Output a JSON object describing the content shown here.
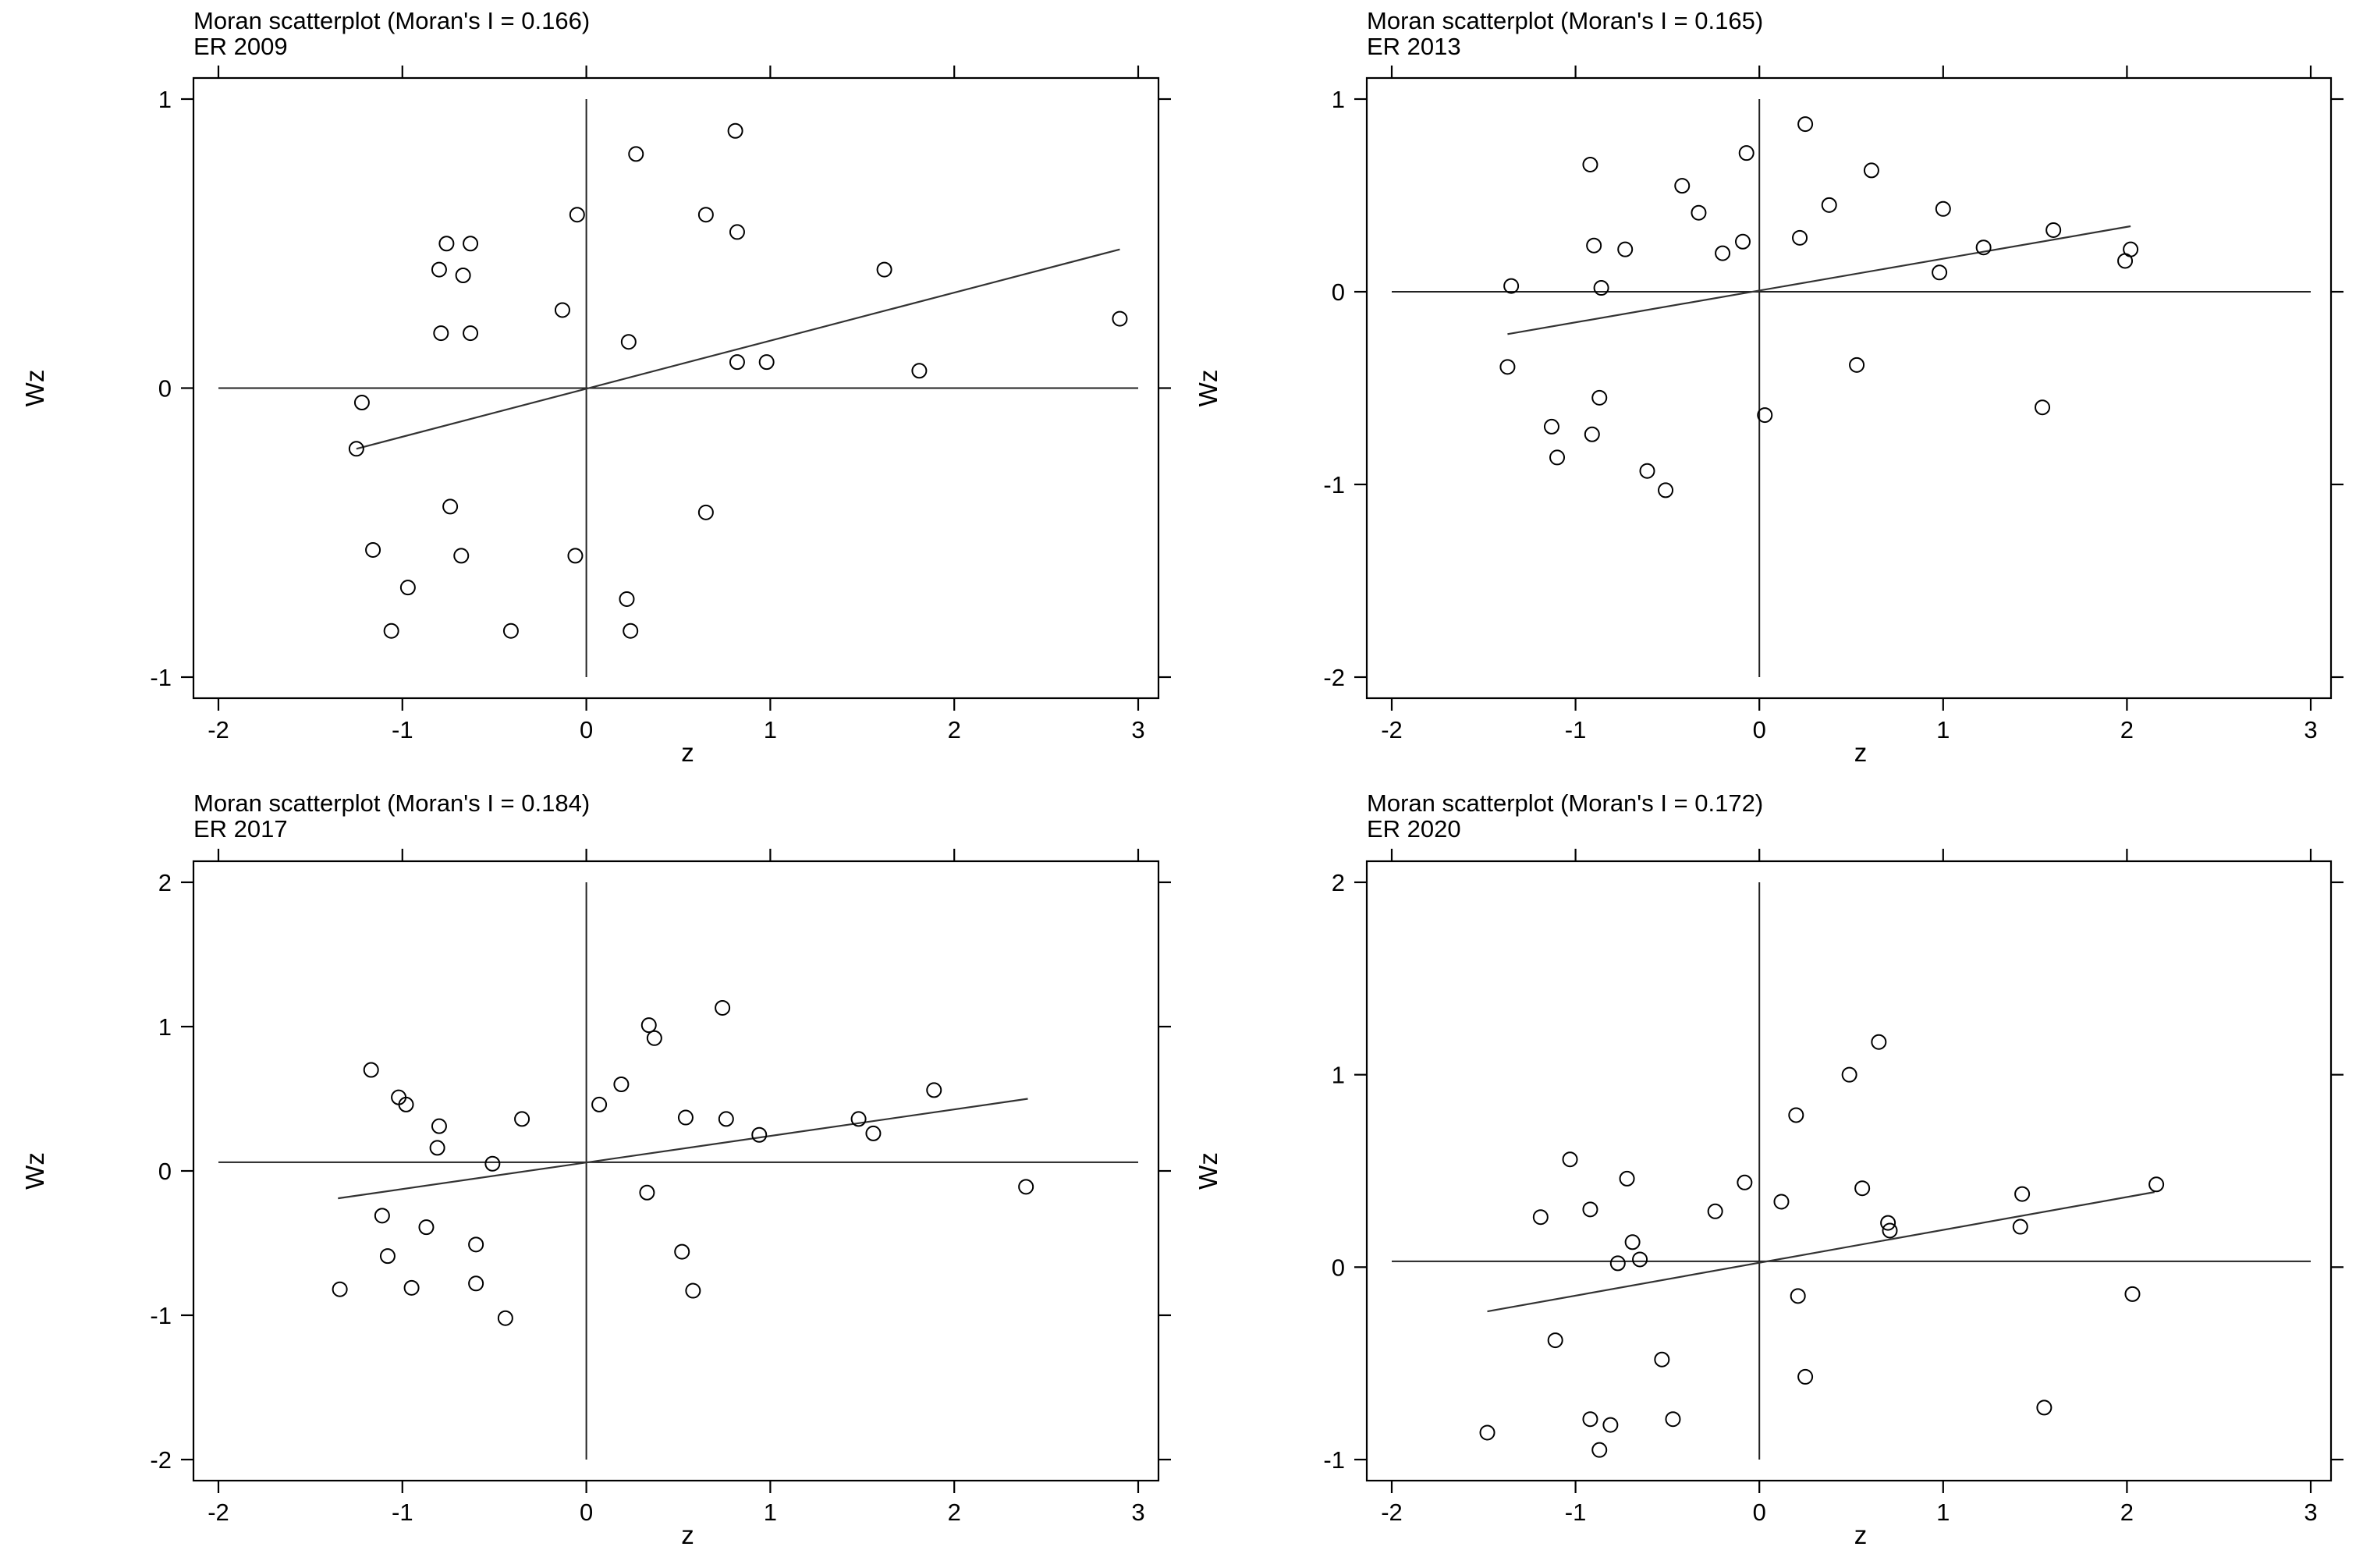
{
  "chart_data": [
    {
      "type": "scatter",
      "title": "Moran scatterplot (Moran's I = 0.166)",
      "subtitle": "ER 2009",
      "xlabel": "z",
      "ylabel": "Wz",
      "xlim": [
        -2,
        3
      ],
      "ylim": [
        -1,
        1
      ],
      "xticks": [
        "-2",
        "-1",
        "0",
        "1",
        "2",
        "3"
      ],
      "yticks": [
        "-1",
        "0",
        "1"
      ],
      "hline": 0.0,
      "vline": 0.0,
      "fit_line": {
        "x": [
          -1.25,
          2.9
        ],
        "y": [
          -0.21,
          0.48
        ]
      },
      "points": [
        {
          "x": 2.9,
          "y": 0.24
        },
        {
          "x": 1.81,
          "y": 0.06
        },
        {
          "x": 1.62,
          "y": 0.41
        },
        {
          "x": 0.81,
          "y": 0.89
        },
        {
          "x": 0.82,
          "y": 0.54
        },
        {
          "x": 0.65,
          "y": 0.6
        },
        {
          "x": 0.82,
          "y": 0.09
        },
        {
          "x": 0.98,
          "y": 0.09
        },
        {
          "x": 0.27,
          "y": 0.81
        },
        {
          "x": 0.23,
          "y": 0.16
        },
        {
          "x": -0.05,
          "y": 0.6
        },
        {
          "x": -0.13,
          "y": 0.27
        },
        {
          "x": -0.76,
          "y": 0.5
        },
        {
          "x": -0.63,
          "y": 0.5
        },
        {
          "x": -0.8,
          "y": 0.41
        },
        {
          "x": -0.67,
          "y": 0.39
        },
        {
          "x": -0.79,
          "y": 0.19
        },
        {
          "x": -0.63,
          "y": 0.19
        },
        {
          "x": -1.22,
          "y": -0.05
        },
        {
          "x": -1.25,
          "y": -0.21
        },
        {
          "x": -1.16,
          "y": -0.56
        },
        {
          "x": -0.74,
          "y": -0.41
        },
        {
          "x": -0.68,
          "y": -0.58
        },
        {
          "x": -0.97,
          "y": -0.69
        },
        {
          "x": -1.06,
          "y": -0.84
        },
        {
          "x": -0.41,
          "y": -0.84
        },
        {
          "x": -0.06,
          "y": -0.58
        },
        {
          "x": 0.22,
          "y": -0.73
        },
        {
          "x": 0.24,
          "y": -0.84
        },
        {
          "x": 0.65,
          "y": -0.43
        }
      ]
    },
    {
      "type": "scatter",
      "title": "Moran scatterplot (Moran's I = 0.165)",
      "subtitle": "ER 2013",
      "xlabel": "z",
      "ylabel": "Wz",
      "xlim": [
        -2,
        3
      ],
      "ylim": [
        -2,
        1
      ],
      "xticks": [
        "-2",
        "-1",
        "0",
        "1",
        "2",
        "3"
      ],
      "yticks": [
        "-2",
        "-1",
        "0",
        "1"
      ],
      "hline": 0.0,
      "vline": 0.0,
      "fit_line": {
        "x": [
          -1.37,
          2.02
        ],
        "y": [
          -0.22,
          0.34
        ]
      },
      "points": [
        {
          "x": 0.25,
          "y": 0.87
        },
        {
          "x": -0.07,
          "y": 0.72
        },
        {
          "x": -0.92,
          "y": 0.66
        },
        {
          "x": 0.61,
          "y": 0.63
        },
        {
          "x": -0.42,
          "y": 0.55
        },
        {
          "x": 0.38,
          "y": 0.45
        },
        {
          "x": 1.0,
          "y": 0.43
        },
        {
          "x": -0.33,
          "y": 0.41
        },
        {
          "x": 1.6,
          "y": 0.32
        },
        {
          "x": 0.22,
          "y": 0.28
        },
        {
          "x": -0.09,
          "y": 0.26
        },
        {
          "x": -0.9,
          "y": 0.24
        },
        {
          "x": 1.22,
          "y": 0.23
        },
        {
          "x": 2.02,
          "y": 0.22
        },
        {
          "x": -0.73,
          "y": 0.22
        },
        {
          "x": -0.2,
          "y": 0.2
        },
        {
          "x": 1.99,
          "y": 0.16
        },
        {
          "x": 0.98,
          "y": 0.1
        },
        {
          "x": -1.35,
          "y": 0.03
        },
        {
          "x": -0.86,
          "y": 0.02
        },
        {
          "x": -1.37,
          "y": -0.39
        },
        {
          "x": 0.53,
          "y": -0.38
        },
        {
          "x": -0.87,
          "y": -0.55
        },
        {
          "x": 1.54,
          "y": -0.6
        },
        {
          "x": 0.03,
          "y": -0.64
        },
        {
          "x": -1.13,
          "y": -0.7
        },
        {
          "x": -0.91,
          "y": -0.74
        },
        {
          "x": -1.1,
          "y": -0.86
        },
        {
          "x": -0.61,
          "y": -0.93
        },
        {
          "x": -0.51,
          "y": -1.03
        }
      ]
    },
    {
      "type": "scatter",
      "title": "Moran scatterplot (Moran's I = 0.184)",
      "subtitle": "ER 2017",
      "xlabel": "z",
      "ylabel": "Wz",
      "xlim": [
        -2,
        3
      ],
      "ylim": [
        -2,
        2
      ],
      "xticks": [
        "-2",
        "-1",
        "0",
        "1",
        "2",
        "3"
      ],
      "yticks": [
        "-2",
        "-1",
        "0",
        "1",
        "2"
      ],
      "hline": 0.06,
      "vline": 0.0,
      "fit_line": {
        "x": [
          -1.35,
          2.4
        ],
        "y": [
          -0.19,
          0.5
        ]
      },
      "points": [
        {
          "x": 0.74,
          "y": 1.13
        },
        {
          "x": 0.34,
          "y": 1.01
        },
        {
          "x": 0.37,
          "y": 0.92
        },
        {
          "x": -1.17,
          "y": 0.7
        },
        {
          "x": 0.19,
          "y": 0.6
        },
        {
          "x": 1.89,
          "y": 0.56
        },
        {
          "x": -1.02,
          "y": 0.51
        },
        {
          "x": -0.98,
          "y": 0.46
        },
        {
          "x": 0.07,
          "y": 0.46
        },
        {
          "x": -0.35,
          "y": 0.36
        },
        {
          "x": 0.54,
          "y": 0.37
        },
        {
          "x": 0.76,
          "y": 0.36
        },
        {
          "x": 1.48,
          "y": 0.36
        },
        {
          "x": -0.8,
          "y": 0.31
        },
        {
          "x": 0.94,
          "y": 0.25
        },
        {
          "x": 1.56,
          "y": 0.26
        },
        {
          "x": -0.81,
          "y": 0.16
        },
        {
          "x": -0.51,
          "y": 0.05
        },
        {
          "x": 2.39,
          "y": -0.11
        },
        {
          "x": 0.33,
          "y": -0.15
        },
        {
          "x": -1.11,
          "y": -0.31
        },
        {
          "x": -0.87,
          "y": -0.39
        },
        {
          "x": -0.6,
          "y": -0.51
        },
        {
          "x": 0.52,
          "y": -0.56
        },
        {
          "x": -1.08,
          "y": -0.59
        },
        {
          "x": -0.6,
          "y": -0.78
        },
        {
          "x": -1.34,
          "y": -0.82
        },
        {
          "x": -0.95,
          "y": -0.81
        },
        {
          "x": 0.58,
          "y": -0.83
        },
        {
          "x": -0.44,
          "y": -1.02
        }
      ]
    },
    {
      "type": "scatter",
      "title": "Moran scatterplot (Moran's I = 0.172)",
      "subtitle": "ER 2020",
      "xlabel": "z",
      "ylabel": "Wz",
      "xlim": [
        -2,
        3
      ],
      "ylim": [
        -1,
        2
      ],
      "xticks": [
        "-2",
        "-1",
        "0",
        "1",
        "2",
        "3"
      ],
      "yticks": [
        "-1",
        "0",
        "1",
        "2"
      ],
      "hline": 0.03,
      "vline": 0.0,
      "fit_line": {
        "x": [
          -1.48,
          2.15
        ],
        "y": [
          -0.23,
          0.39
        ]
      },
      "points": [
        {
          "x": 0.65,
          "y": 1.17
        },
        {
          "x": 0.49,
          "y": 1.0
        },
        {
          "x": 0.2,
          "y": 0.79
        },
        {
          "x": -1.03,
          "y": 0.56
        },
        {
          "x": -0.72,
          "y": 0.46
        },
        {
          "x": -0.08,
          "y": 0.44
        },
        {
          "x": 2.16,
          "y": 0.43
        },
        {
          "x": 0.56,
          "y": 0.41
        },
        {
          "x": 1.43,
          "y": 0.38
        },
        {
          "x": 0.12,
          "y": 0.34
        },
        {
          "x": -0.92,
          "y": 0.3
        },
        {
          "x": -0.24,
          "y": 0.29
        },
        {
          "x": -1.19,
          "y": 0.26
        },
        {
          "x": 0.7,
          "y": 0.23
        },
        {
          "x": 1.42,
          "y": 0.21
        },
        {
          "x": 0.71,
          "y": 0.19
        },
        {
          "x": -0.69,
          "y": 0.13
        },
        {
          "x": -0.65,
          "y": 0.04
        },
        {
          "x": -0.77,
          "y": 0.02
        },
        {
          "x": 0.21,
          "y": -0.15
        },
        {
          "x": 2.03,
          "y": -0.14
        },
        {
          "x": -1.11,
          "y": -0.38
        },
        {
          "x": -0.53,
          "y": -0.48
        },
        {
          "x": 0.25,
          "y": -0.57
        },
        {
          "x": 1.55,
          "y": -0.73
        },
        {
          "x": -0.92,
          "y": -0.79
        },
        {
          "x": -0.47,
          "y": -0.79
        },
        {
          "x": -0.81,
          "y": -0.82
        },
        {
          "x": -1.48,
          "y": -0.86
        },
        {
          "x": -0.87,
          "y": -0.95
        }
      ]
    }
  ]
}
